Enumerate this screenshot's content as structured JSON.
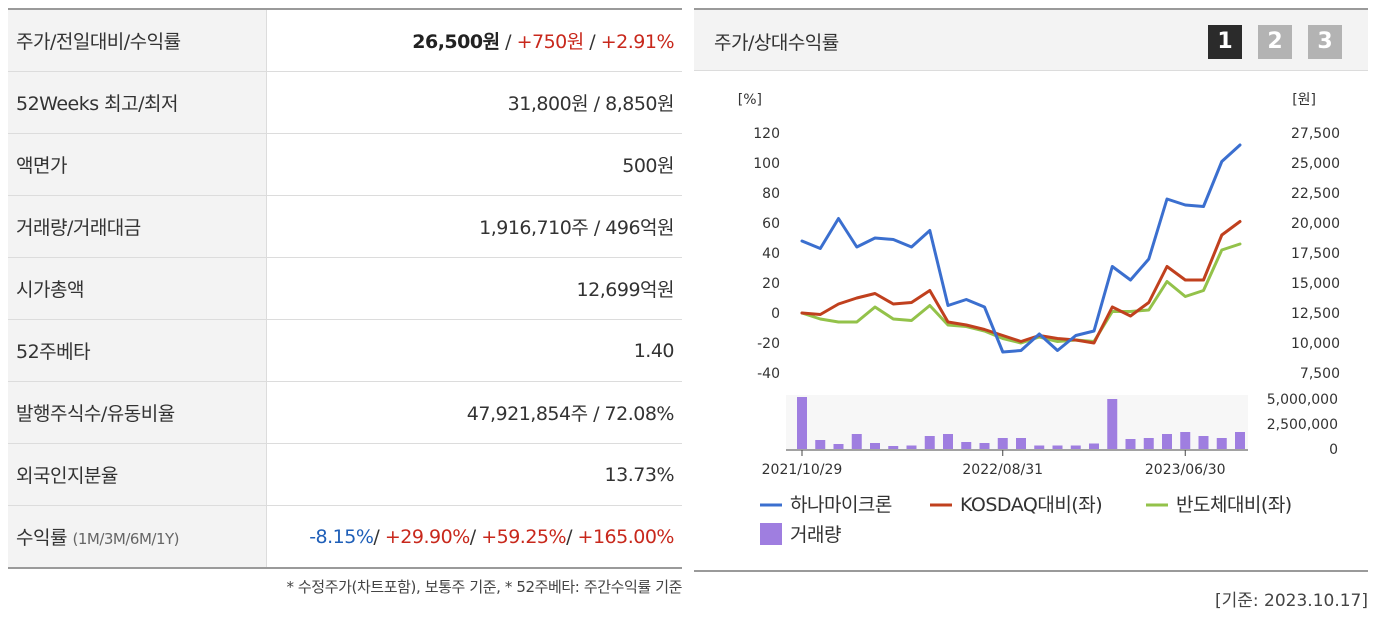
{
  "table": {
    "rows": [
      {
        "label": "주가/전일대비/수익률"
      },
      {
        "label": "52Weeks 최고/최저",
        "value": "31,800원 / 8,850원"
      },
      {
        "label": "액면가",
        "value": "500원"
      },
      {
        "label": "거래량/거래대금",
        "value": "1,916,710주 / 496억원"
      },
      {
        "label": "시가총액",
        "value": "12,699억원"
      },
      {
        "label": "52주베타",
        "value": "1.40"
      },
      {
        "label": "발행주식수/유동비율",
        "value": "47,921,854주 / 72.08%"
      },
      {
        "label": "외국인지분율",
        "value": "13.73%"
      },
      {
        "label": "수익률",
        "sublabel": "(1M/3M/6M/1Y)"
      }
    ],
    "price": {
      "price": "26,500원",
      "sep1": " / ",
      "change": "+750원",
      "sep2": " / ",
      "rate": "+2.91%"
    },
    "returns": {
      "r1m": "-8.15%",
      "r3m": "+29.90%",
      "r6m": "+59.25%",
      "r1y": "+165.00%",
      "sep": "/ "
    },
    "footnote": "* 수정주가(차트포함), 보통주 기준, * 52주베타: 주간수익률 기준"
  },
  "panel": {
    "title": "주가/상대수익률",
    "period_buttons": [
      "1",
      "2",
      "3"
    ],
    "active_button": 0,
    "base_date": "[기준: 2023.10.17]"
  },
  "colors": {
    "price_line": "#3b6fcf",
    "kosdaq_line": "#c0401e",
    "semi_line": "#93c24a",
    "volume_bar": "#9f7ee0"
  },
  "chart_data": {
    "type": "line",
    "left_axis": {
      "unit": "[%]",
      "ylim": [
        -40,
        120
      ],
      "ticks": [
        120,
        100,
        80,
        60,
        40,
        20,
        0,
        -20,
        -40
      ]
    },
    "right_axis": {
      "unit": "[원]",
      "ticks": [
        "27,500",
        "25,000",
        "22,500",
        "20,000",
        "17,500",
        "15,000",
        "12,500",
        "10,000",
        "7,500"
      ]
    },
    "volume_axis": {
      "ticks": [
        "5,000,000",
        "2,500,000",
        "0"
      ],
      "ylim": [
        0,
        5000000
      ]
    },
    "x_tick_labels": [
      {
        "index": 0,
        "label": "2021/10/29"
      },
      {
        "index": 11,
        "label": "2022/08/31"
      },
      {
        "index": 21,
        "label": "2023/06/30"
      }
    ],
    "series": [
      {
        "name": "하나마이크론",
        "color": "#3b6fcf",
        "values": [
          48,
          43,
          63,
          44,
          50,
          49,
          44,
          55,
          5,
          9,
          4,
          -26,
          -25,
          -14,
          -25,
          -15,
          -12,
          31,
          22,
          36,
          76,
          72,
          71,
          101,
          112
        ]
      },
      {
        "name": "KOSDAQ대비(좌)",
        "color": "#c0401e",
        "values": [
          0,
          -1,
          6,
          10,
          13,
          6,
          7,
          15,
          -6,
          -8,
          -11,
          -15,
          -19,
          -15,
          -17,
          -18,
          -20,
          4,
          -2,
          7,
          31,
          22,
          22,
          52,
          61
        ]
      },
      {
        "name": "반도체대비(좌)",
        "color": "#93c24a",
        "values": [
          0,
          -4,
          -6,
          -6,
          4,
          -4,
          -5,
          5,
          -8,
          -9,
          -12,
          -17,
          -20,
          -16,
          -19,
          -18,
          -19,
          1,
          1,
          2,
          21,
          11,
          15,
          42,
          46
        ]
      }
    ],
    "volume": {
      "name": "거래량",
      "values": [
        5200000,
        900000,
        500000,
        1500000,
        600000,
        300000,
        350000,
        1300000,
        1500000,
        700000,
        600000,
        1100000,
        1100000,
        350000,
        350000,
        350000,
        550000,
        5000000,
        1000000,
        1100000,
        1500000,
        1700000,
        1300000,
        1100000,
        1700000
      ]
    }
  }
}
